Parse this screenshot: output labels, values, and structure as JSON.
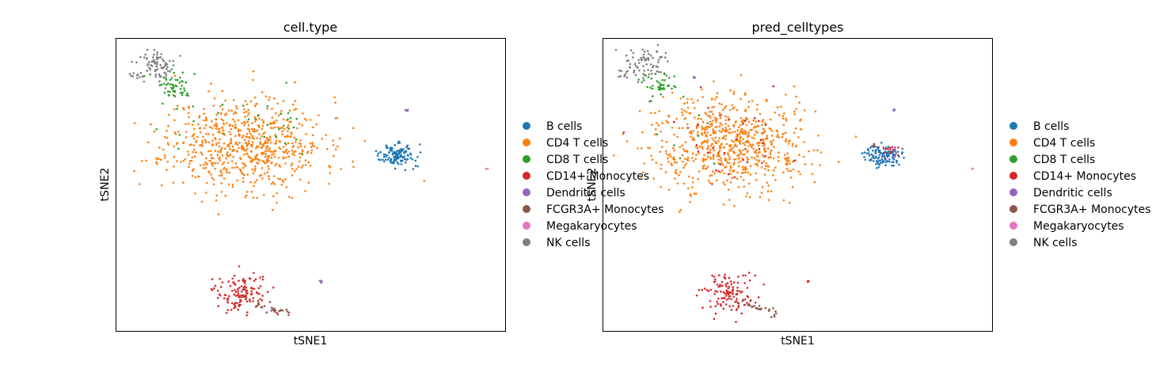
{
  "colors": {
    "B cells": "#1f77b4",
    "CD4 T cells": "#ff7f0e",
    "CD8 T cells": "#2ca02c",
    "CD14+ Monocytes": "#d62728",
    "Dendritic cells": "#9467bd",
    "FCGR3A+ Monocytes": "#8c564b",
    "Megakaryocytes": "#e377c2",
    "NK cells": "#7f7f7f"
  },
  "chart_data": [
    {
      "type": "scatter",
      "title": "cell.type",
      "xlabel": "tSNE1",
      "ylabel": "tSNE2",
      "xticks": false,
      "yticks": false,
      "xlim": [
        0,
        100
      ],
      "ylim": [
        0,
        100
      ],
      "legend": {
        "placement": "right-outside",
        "entries": [
          "B cells",
          "CD4 T cells",
          "CD8 T cells",
          "CD14+ Monocytes",
          "Dendritic cells",
          "FCGR3A+ Monocytes",
          "Megakaryocytes",
          "NK cells"
        ]
      },
      "clusters": [
        {
          "label": "CD4 T cells",
          "shape": "gauss",
          "cx": 33,
          "cy": 64,
          "sx": 10,
          "sy": 8,
          "n": 700,
          "seed": 11
        },
        {
          "label": "NK cells",
          "shape": "gauss",
          "cx": 11,
          "cy": 91,
          "sx": 2.6,
          "sy": 2.6,
          "n": 70,
          "seed": 12
        },
        {
          "label": "NK cells",
          "shape": "gauss",
          "cx": 5.5,
          "cy": 87.5,
          "sx": 1.2,
          "sy": 0.8,
          "n": 10,
          "seed": 13
        },
        {
          "label": "CD8 T cells",
          "shape": "gauss",
          "cx": 16,
          "cy": 84,
          "sx": 3,
          "sy": 2.5,
          "n": 55,
          "seed": 14
        },
        {
          "label": "CD8 T cells",
          "shape": "gauss",
          "cx": 42,
          "cy": 72,
          "sx": 5,
          "sy": 5,
          "n": 22,
          "seed": 15
        },
        {
          "label": "CD8 T cells",
          "shape": "gauss",
          "cx": 21,
          "cy": 72,
          "sx": 5,
          "sy": 6,
          "n": 8,
          "seed": 16
        },
        {
          "label": "B cells",
          "shape": "gauss",
          "cx": 72,
          "cy": 60,
          "sx": 2.3,
          "sy": 1.8,
          "n": 130,
          "seed": 17
        },
        {
          "label": "CD14+ Monocytes",
          "shape": "gauss",
          "cx": 32,
          "cy": 13,
          "sx": 3.2,
          "sy": 3.3,
          "n": 120,
          "seed": 18
        },
        {
          "label": "FCGR3A+ Monocytes",
          "shape": "line",
          "x0": 36,
          "y0": 10,
          "x1": 45,
          "y1": 5.5,
          "spread": 0.8,
          "n": 28,
          "seed": 19
        },
        {
          "label": "Dendritic cells",
          "shape": "gauss",
          "cx": 74.5,
          "cy": 75.5,
          "sx": 0.25,
          "sy": 0.25,
          "n": 4,
          "seed": 20
        },
        {
          "label": "Dendritic cells",
          "shape": "gauss",
          "cx": 52.5,
          "cy": 17,
          "sx": 0.25,
          "sy": 0.25,
          "n": 4,
          "seed": 21
        },
        {
          "label": "Megakaryocytes",
          "shape": "gauss",
          "cx": 95,
          "cy": 55.5,
          "sx": 0.2,
          "sy": 0.2,
          "n": 2,
          "seed": 22
        }
      ]
    },
    {
      "type": "scatter",
      "title": "pred_celltypes",
      "xlabel": "tSNE1",
      "ylabel": "tSNE2",
      "xticks": false,
      "yticks": false,
      "xlim": [
        0,
        100
      ],
      "ylim": [
        0,
        100
      ],
      "legend": {
        "placement": "right-outside",
        "entries": [
          "B cells",
          "CD4 T cells",
          "CD8 T cells",
          "CD14+ Monocytes",
          "Dendritic cells",
          "FCGR3A+ Monocytes",
          "Megakaryocytes",
          "NK cells"
        ]
      },
      "clusters": [
        {
          "label": "CD4 T cells",
          "shape": "gauss",
          "cx": 33,
          "cy": 64,
          "sx": 10,
          "sy": 8,
          "n": 700,
          "seed": 31
        },
        {
          "label": "CD14+ Monocytes",
          "shape": "gauss",
          "cx": 33,
          "cy": 68,
          "sx": 10,
          "sy": 8,
          "n": 35,
          "seed": 32
        },
        {
          "label": "NK cells",
          "shape": "gauss",
          "cx": 11,
          "cy": 91,
          "sx": 2.6,
          "sy": 2.6,
          "n": 70,
          "seed": 33
        },
        {
          "label": "NK cells",
          "shape": "gauss",
          "cx": 5.5,
          "cy": 87.5,
          "sx": 1.2,
          "sy": 0.8,
          "n": 10,
          "seed": 34
        },
        {
          "label": "CD8 T cells",
          "shape": "gauss",
          "cx": 15,
          "cy": 84,
          "sx": 2.8,
          "sy": 2.5,
          "n": 40,
          "seed": 35
        },
        {
          "label": "CD8 T cells",
          "shape": "gauss",
          "cx": 22,
          "cy": 70,
          "sx": 6,
          "sy": 7,
          "n": 8,
          "seed": 36
        },
        {
          "label": "B cells",
          "shape": "gauss",
          "cx": 72,
          "cy": 60,
          "sx": 2.3,
          "sy": 1.8,
          "n": 120,
          "seed": 37
        },
        {
          "label": "CD14+ Monocytes",
          "shape": "gauss",
          "cx": 72.5,
          "cy": 62,
          "sx": 1.8,
          "sy": 1.4,
          "n": 14,
          "seed": 38
        },
        {
          "label": "Dendritic cells",
          "shape": "gauss",
          "cx": 74,
          "cy": 61,
          "sx": 1.5,
          "sy": 1.2,
          "n": 8,
          "seed": 39
        },
        {
          "label": "CD14+ Monocytes",
          "shape": "gauss",
          "cx": 32,
          "cy": 13,
          "sx": 3.2,
          "sy": 3.3,
          "n": 120,
          "seed": 40
        },
        {
          "label": "FCGR3A+ Monocytes",
          "shape": "line",
          "x0": 36,
          "y0": 10,
          "x1": 45,
          "y1": 5.5,
          "spread": 0.8,
          "n": 28,
          "seed": 41
        },
        {
          "label": "Dendritic cells",
          "shape": "gauss",
          "cx": 74.5,
          "cy": 75.5,
          "sx": 0.25,
          "sy": 0.25,
          "n": 4,
          "seed": 42
        },
        {
          "label": "CD14+ Monocytes",
          "shape": "gauss",
          "cx": 52.5,
          "cy": 17,
          "sx": 0.25,
          "sy": 0.25,
          "n": 4,
          "seed": 43
        },
        {
          "label": "Dendritic cells",
          "shape": "gauss",
          "cx": 23.5,
          "cy": 86.5,
          "sx": 0.25,
          "sy": 0.25,
          "n": 3,
          "seed": 44
        },
        {
          "label": "Megakaryocytes",
          "shape": "gauss",
          "cx": 95,
          "cy": 55.5,
          "sx": 0.2,
          "sy": 0.2,
          "n": 2,
          "seed": 45
        }
      ]
    }
  ]
}
